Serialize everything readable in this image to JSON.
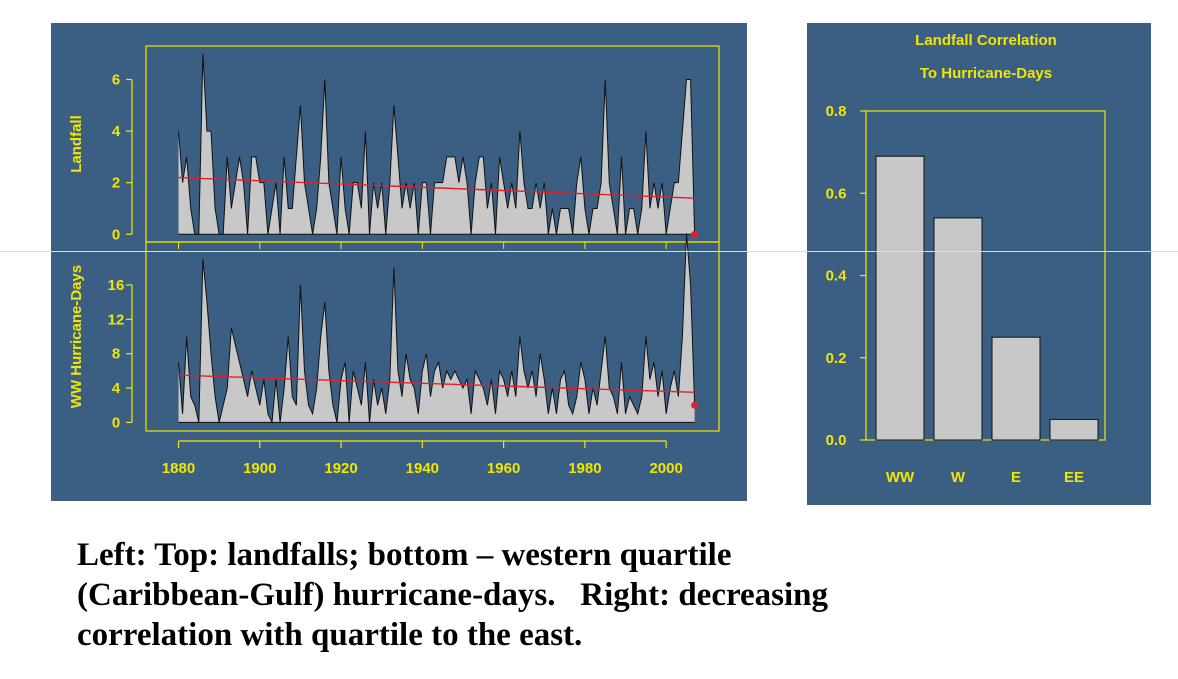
{
  "colors": {
    "panel_bg": "#3b5f83",
    "axis_yellow": "#f2e600",
    "fill_gray": "#c8c8c8",
    "trend_red": "#e0202a",
    "caption_text": "#000000"
  },
  "chart_data": [
    {
      "type": "area",
      "title": "",
      "ylabel": "Landfall",
      "xlabel": "",
      "xlim": [
        1872,
        2013
      ],
      "ylim": [
        -0.3,
        7.3
      ],
      "yticks": [
        0,
        2,
        4,
        6
      ],
      "years": [
        1880,
        1881,
        1882,
        1883,
        1884,
        1885,
        1886,
        1887,
        1888,
        1889,
        1890,
        1891,
        1892,
        1893,
        1894,
        1895,
        1896,
        1897,
        1898,
        1899,
        1900,
        1901,
        1902,
        1903,
        1904,
        1905,
        1906,
        1907,
        1908,
        1909,
        1910,
        1911,
        1912,
        1913,
        1914,
        1915,
        1916,
        1917,
        1918,
        1919,
        1920,
        1921,
        1922,
        1923,
        1924,
        1925,
        1926,
        1927,
        1928,
        1929,
        1930,
        1931,
        1932,
        1933,
        1934,
        1935,
        1936,
        1937,
        1938,
        1939,
        1940,
        1941,
        1942,
        1943,
        1944,
        1945,
        1946,
        1947,
        1948,
        1949,
        1950,
        1951,
        1952,
        1953,
        1954,
        1955,
        1956,
        1957,
        1958,
        1959,
        1960,
        1961,
        1962,
        1963,
        1964,
        1965,
        1966,
        1967,
        1968,
        1969,
        1970,
        1971,
        1972,
        1973,
        1974,
        1975,
        1976,
        1977,
        1978,
        1979,
        1980,
        1981,
        1982,
        1983,
        1984,
        1985,
        1986,
        1987,
        1988,
        1989,
        1990,
        1991,
        1992,
        1993,
        1994,
        1995,
        1996,
        1997,
        1998,
        1999,
        2000,
        2001,
        2002,
        2003,
        2004,
        2005,
        2006,
        2007
      ],
      "values": [
        4,
        2,
        3,
        1,
        0,
        0,
        7,
        4,
        4,
        1,
        0,
        0,
        3,
        1,
        2,
        3,
        2,
        0,
        3,
        3,
        2,
        2,
        0,
        1,
        2,
        0,
        3,
        1,
        1,
        3,
        5,
        2,
        1,
        0,
        1,
        3,
        6,
        2,
        1,
        0,
        3,
        1,
        0,
        2,
        2,
        1,
        4,
        0,
        2,
        1,
        2,
        0,
        2,
        5,
        3,
        1,
        2,
        1,
        2,
        0,
        2,
        2,
        0,
        2,
        2,
        2,
        3,
        3,
        3,
        2,
        3,
        2,
        0,
        2,
        3,
        3,
        1,
        2,
        0,
        3,
        2,
        1,
        2,
        1,
        4,
        2,
        1,
        1,
        2,
        1,
        2,
        0,
        1,
        0,
        1,
        1,
        1,
        0,
        2,
        3,
        1,
        0,
        1,
        1,
        2,
        6,
        2,
        1,
        0,
        3,
        0,
        1,
        1,
        0,
        1,
        4,
        1,
        2,
        1,
        2,
        0,
        1,
        2,
        2,
        4,
        6,
        6,
        0
      ],
      "trend": {
        "x": [
          1880,
          2007
        ],
        "y": [
          2.2,
          1.4
        ]
      },
      "last_point": {
        "x": 2007,
        "y": 0
      }
    },
    {
      "type": "area",
      "title": "",
      "ylabel": "WW Hurricane-Days",
      "xlabel": "",
      "xlim": [
        1872,
        2013
      ],
      "ylim": [
        -1,
        21
      ],
      "yticks": [
        0,
        4,
        8,
        12,
        16
      ],
      "xticks": [
        1880,
        1900,
        1920,
        1940,
        1960,
        1980,
        2000
      ],
      "years": [
        1880,
        1881,
        1882,
        1883,
        1884,
        1885,
        1886,
        1887,
        1888,
        1889,
        1890,
        1891,
        1892,
        1893,
        1894,
        1895,
        1896,
        1897,
        1898,
        1899,
        1900,
        1901,
        1902,
        1903,
        1904,
        1905,
        1906,
        1907,
        1908,
        1909,
        1910,
        1911,
        1912,
        1913,
        1914,
        1915,
        1916,
        1917,
        1918,
        1919,
        1920,
        1921,
        1922,
        1923,
        1924,
        1925,
        1926,
        1927,
        1928,
        1929,
        1930,
        1931,
        1932,
        1933,
        1934,
        1935,
        1936,
        1937,
        1938,
        1939,
        1940,
        1941,
        1942,
        1943,
        1944,
        1945,
        1946,
        1947,
        1948,
        1949,
        1950,
        1951,
        1952,
        1953,
        1954,
        1955,
        1956,
        1957,
        1958,
        1959,
        1960,
        1961,
        1962,
        1963,
        1964,
        1965,
        1966,
        1967,
        1968,
        1969,
        1970,
        1971,
        1972,
        1973,
        1974,
        1975,
        1976,
        1977,
        1978,
        1979,
        1980,
        1981,
        1982,
        1983,
        1984,
        1985,
        1986,
        1987,
        1988,
        1989,
        1990,
        1991,
        1992,
        1993,
        1994,
        1995,
        1996,
        1997,
        1998,
        1999,
        2000,
        2001,
        2002,
        2003,
        2004,
        2005,
        2006,
        2007
      ],
      "values": [
        7,
        1,
        10,
        3,
        2,
        0,
        19,
        14,
        8,
        3,
        0,
        2,
        4,
        11,
        9,
        7,
        5,
        3,
        6,
        4,
        2,
        5,
        1,
        0,
        5,
        0,
        4,
        10,
        3,
        2,
        16,
        6,
        2,
        1,
        4,
        10,
        14,
        6,
        2,
        0,
        5,
        7,
        0,
        6,
        4,
        2,
        7,
        0,
        5,
        2,
        4,
        1,
        5,
        18,
        6,
        3,
        8,
        5,
        4,
        1,
        6,
        8,
        3,
        6,
        7,
        4,
        6,
        5,
        6,
        5,
        4,
        5,
        1,
        6,
        5,
        4,
        2,
        5,
        1,
        6,
        5,
        3,
        6,
        3,
        10,
        6,
        4,
        6,
        3,
        8,
        5,
        1,
        4,
        1,
        5,
        6,
        2,
        1,
        3,
        7,
        5,
        1,
        4,
        2,
        6,
        10,
        4,
        3,
        1,
        7,
        1,
        3,
        2,
        1,
        3,
        10,
        5,
        7,
        3,
        6,
        1,
        4,
        6,
        3,
        10,
        22,
        16,
        2
      ],
      "trend": {
        "x": [
          1880,
          2007
        ],
        "y": [
          5.5,
          3.5
        ]
      },
      "last_point": {
        "x": 2007,
        "y": 2
      }
    },
    {
      "type": "bar",
      "title": "Landfall Correlation To Hurricane-Days",
      "title_lines": [
        "Landfall Correlation",
        "To Hurricane-Days"
      ],
      "xlabel": "",
      "ylabel": "",
      "categories": [
        "WW",
        "W",
        "E",
        "EE"
      ],
      "values": [
        0.69,
        0.54,
        0.25,
        0.05
      ],
      "ylim": [
        0,
        0.8
      ],
      "yticks": [
        "0.0",
        "0.2",
        "0.4",
        "0.6",
        "0.8"
      ]
    }
  ],
  "caption": {
    "lines": [
      "Left: Top: landfalls; bottom – western quartile",
      "(Caribbean-Gulf) hurricane-days.   Right: decreasing",
      "correlation with quartile to the east."
    ]
  }
}
